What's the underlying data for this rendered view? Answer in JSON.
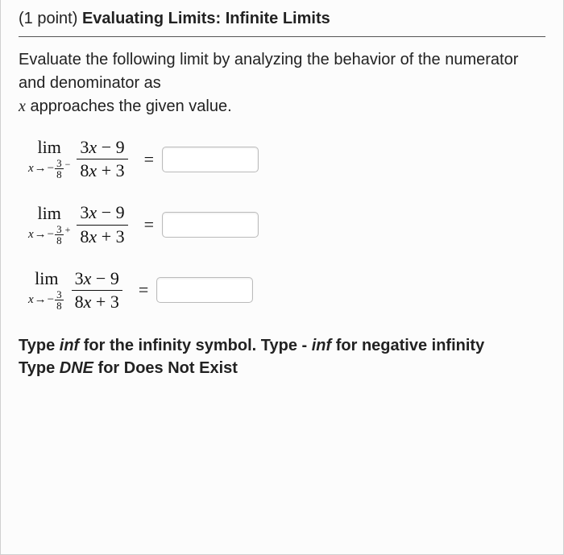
{
  "heading": {
    "points": "(1 point)",
    "title": "Evaluating Limits: Infinite Limits"
  },
  "instructions": {
    "line1": "Evaluate the following limit by analyzing the behavior of the numerator and denominator as",
    "line2_var": "x",
    "line2_rest": " approaches the given value."
  },
  "fraction": {
    "numerator_a": "3",
    "numerator_rest": " − 9",
    "denominator_a": "8",
    "denominator_rest": " + 3"
  },
  "limit_target": {
    "var": "x",
    "arrow": "→",
    "neg": "−",
    "frac_num": "3",
    "frac_den": "8"
  },
  "problems": [
    {
      "side": "−"
    },
    {
      "side": "+"
    },
    {
      "side": ""
    }
  ],
  "equals": "=",
  "lim_word": "lim",
  "hints": {
    "p1a": "Type ",
    "p1b": "inf",
    "p1c": " for the infinity symbol. Type - ",
    "p1d": "inf",
    "p1e": " for negative infinity",
    "p2a": "Type ",
    "p2b": "DNE",
    "p2c": " for Does Not Exist"
  }
}
